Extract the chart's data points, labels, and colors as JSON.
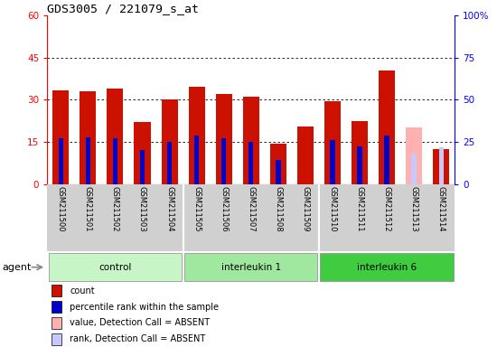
{
  "title": "GDS3005 / 221079_s_at",
  "samples": [
    "GSM211500",
    "GSM211501",
    "GSM211502",
    "GSM211503",
    "GSM211504",
    "GSM211505",
    "GSM211506",
    "GSM211507",
    "GSM211508",
    "GSM211509",
    "GSM211510",
    "GSM211511",
    "GSM211512",
    "GSM211513",
    "GSM211514"
  ],
  "count_values": [
    33.5,
    33.0,
    34.0,
    22.0,
    30.0,
    34.5,
    32.0,
    31.0,
    14.5,
    20.5,
    29.5,
    22.5,
    40.5,
    0,
    12.5
  ],
  "rank_values": [
    27.0,
    27.5,
    27.0,
    20.0,
    25.0,
    29.0,
    27.0,
    25.0,
    14.0,
    0,
    26.0,
    22.5,
    29.0,
    0,
    0
  ],
  "absent_count": [
    0,
    0,
    0,
    0,
    0,
    0,
    0,
    0,
    0,
    0,
    0,
    0,
    0,
    20.0,
    0
  ],
  "absent_rank": [
    0,
    0,
    0,
    0,
    0,
    0,
    0,
    0,
    0,
    0,
    0,
    0,
    0,
    18.0,
    22.0
  ],
  "ylim_left": [
    0,
    60
  ],
  "ylim_right": [
    0,
    100
  ],
  "yticks_left": [
    0,
    15,
    30,
    45,
    60
  ],
  "yticks_right": [
    0,
    25,
    50,
    75,
    100
  ],
  "count_color": "#cc1100",
  "rank_color": "#0000cc",
  "absent_count_color": "#ffb0b0",
  "absent_rank_color": "#c8c8ff",
  "bar_width": 0.6,
  "rank_bar_width": 0.18,
  "background_plot": "#ffffff",
  "background_xtick": "#d0d0d0",
  "groups_info": [
    {
      "name": "control",
      "start": 0,
      "end": 5,
      "color": "#c8f5c8"
    },
    {
      "name": "interleukin 1",
      "start": 5,
      "end": 10,
      "color": "#a0e8a0"
    },
    {
      "name": "interleukin 6",
      "start": 10,
      "end": 15,
      "color": "#40cc40"
    }
  ],
  "legend_items": [
    {
      "color": "#cc1100",
      "label": "count"
    },
    {
      "color": "#0000cc",
      "label": "percentile rank within the sample"
    },
    {
      "color": "#ffb0b0",
      "label": "value, Detection Call = ABSENT"
    },
    {
      "color": "#c8c8ff",
      "label": "rank, Detection Call = ABSENT"
    }
  ]
}
